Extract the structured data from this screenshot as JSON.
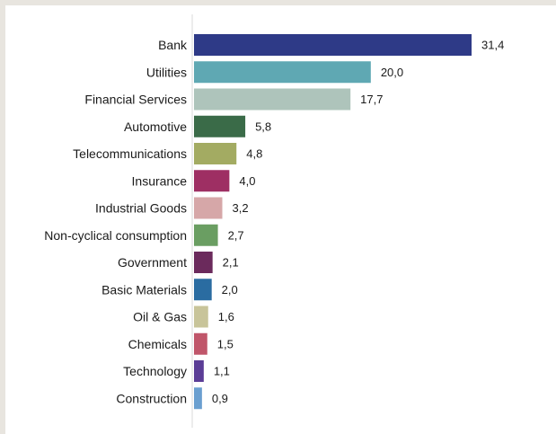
{
  "chart_data": {
    "type": "bar",
    "orientation": "horizontal",
    "title": "",
    "xlabel": "",
    "ylabel": "",
    "grid": false,
    "xlim": [
      0,
      31.4
    ],
    "categories": [
      "Bank",
      "Utilities",
      "Financial Services",
      "Automotive",
      "Telecommunications",
      "Insurance",
      "Industrial Goods",
      "Non-cyclical consumption",
      "Government",
      "Basic Materials",
      "Oil & Gas",
      "Chemicals",
      "Technology",
      "Construction"
    ],
    "values": [
      31.4,
      20.0,
      17.7,
      5.8,
      4.8,
      4.0,
      3.2,
      2.7,
      2.1,
      2.0,
      1.6,
      1.5,
      1.1,
      0.9
    ],
    "value_labels": [
      "31,4",
      "20,0",
      "17,7",
      "5,8",
      "4,8",
      "4,0",
      "3,2",
      "2,7",
      "2,1",
      "2,0",
      "1,6",
      "1,5",
      "1,1",
      "0,9"
    ],
    "colors": [
      "#2e3a87",
      "#5fa8b3",
      "#aec4bb",
      "#3a6b48",
      "#a3ab62",
      "#9e2f63",
      "#d6a7a8",
      "#6a9e62",
      "#6b2a5c",
      "#2a6ca1",
      "#c8c49a",
      "#c0566a",
      "#5b3d96",
      "#6a9fd0"
    ]
  }
}
